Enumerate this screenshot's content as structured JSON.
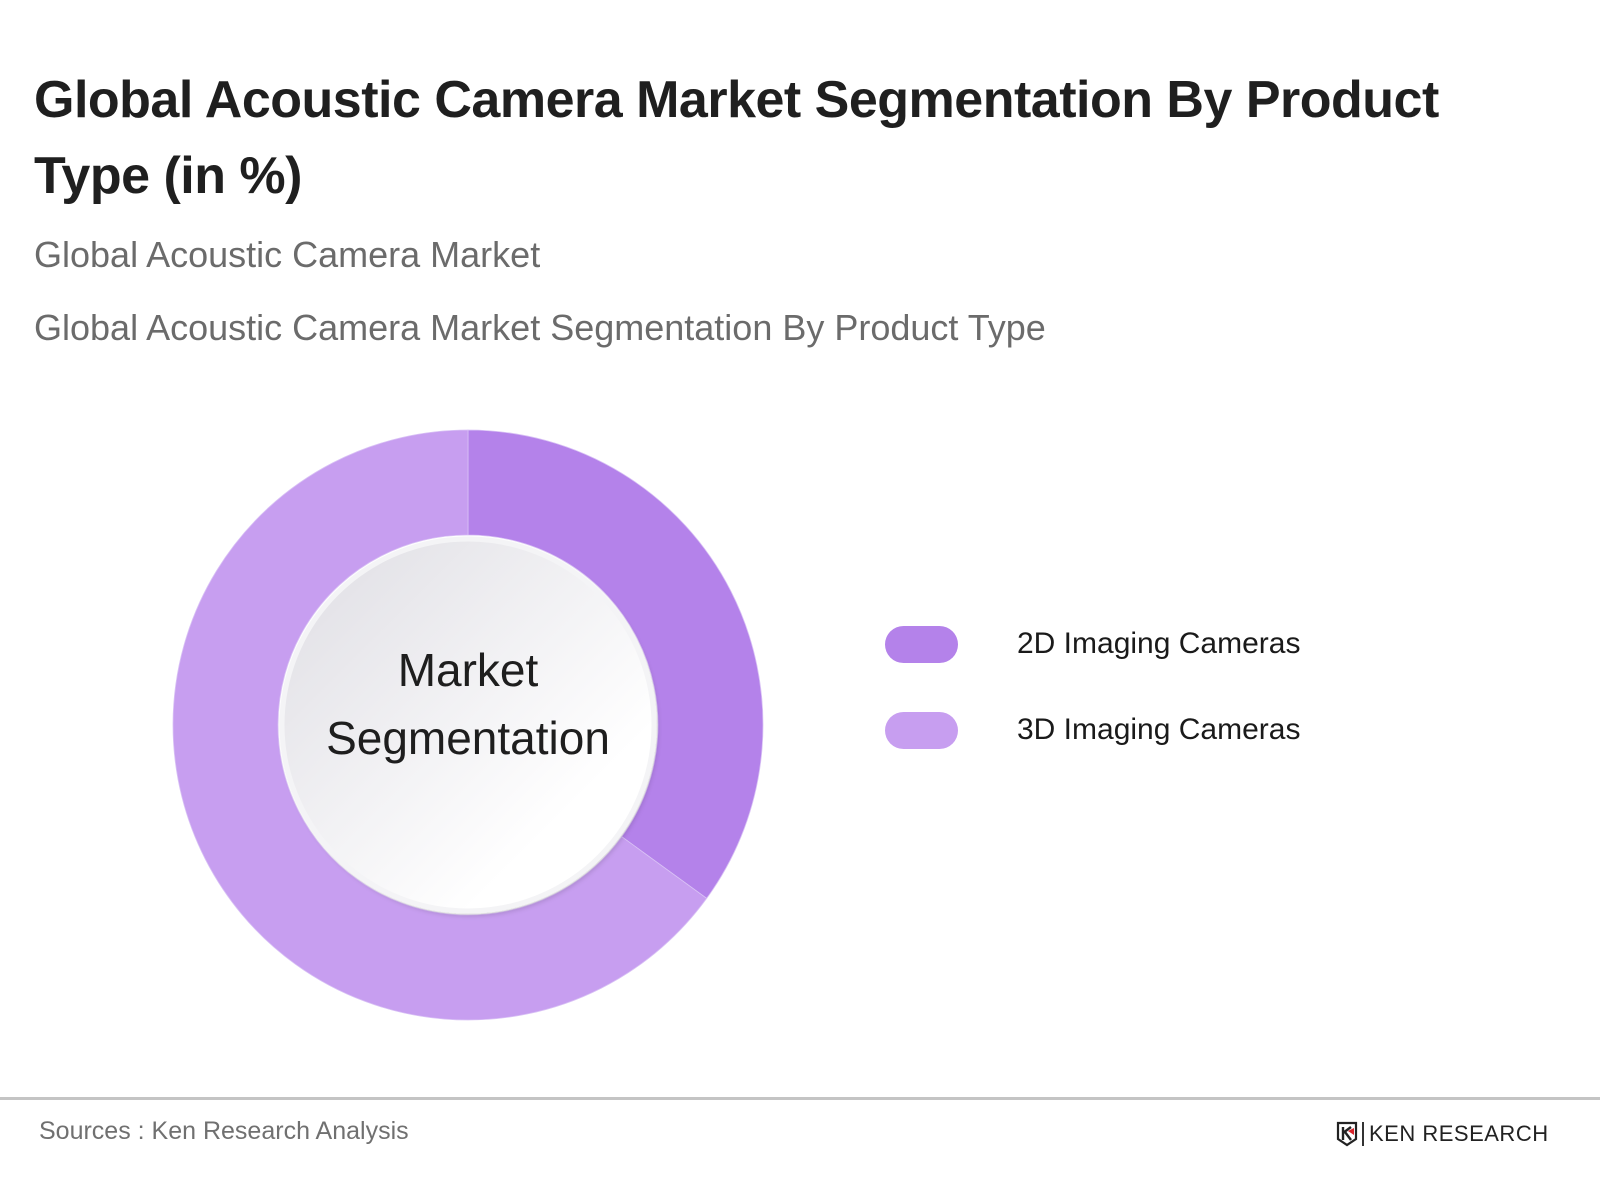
{
  "header": {
    "title": "Global Acoustic Camera Market Segmentation By Product Type (in %)",
    "subtitle_1": "Global Acoustic Camera Market",
    "subtitle_2": "Global Acoustic Camera Market Segmentation By Product Type"
  },
  "chart": {
    "center_label_line1": "Market",
    "center_label_line2": "Segmentation"
  },
  "legend": [
    {
      "label": "2D Imaging Cameras",
      "color": "#b482ea"
    },
    {
      "label": "3D Imaging Cameras",
      "color": "#c79ef0"
    }
  ],
  "footer": {
    "source": "Sources : Ken Research Analysis",
    "logo_text": "KEN RESEARCH"
  },
  "chart_data": {
    "type": "pie",
    "variant": "donut",
    "title": "Global Acoustic Camera Market Segmentation By Product Type (in %)",
    "subtitle": "Global Acoustic Camera Market Segmentation By Product Type",
    "categories": [
      "2D Imaging Cameras",
      "3D Imaging Cameras"
    ],
    "values": [
      35,
      65
    ],
    "colors": [
      "#b482ea",
      "#c79ef0"
    ],
    "center_text": "Market Segmentation",
    "legend_position": "right",
    "data_labels": false,
    "source": "Sources : Ken Research Analysis"
  }
}
